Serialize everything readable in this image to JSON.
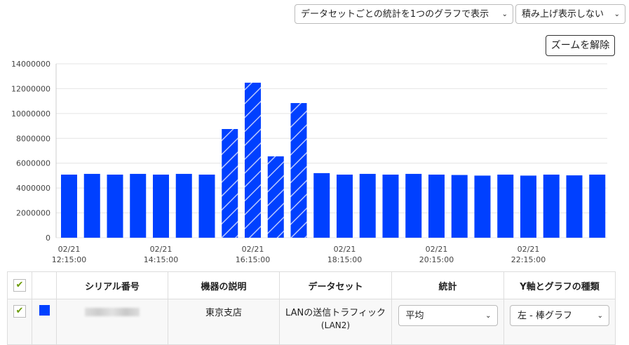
{
  "controls": {
    "display_mode": "データセットごとの統計を1つのグラフで表示",
    "stack_mode": "積み上げ表示しない",
    "zoom_reset": "ズームを解除"
  },
  "chart_data": {
    "type": "bar",
    "ylim": [
      0,
      14000000
    ],
    "y_ticks": [
      "0",
      "2000000",
      "4000000",
      "6000000",
      "8000000",
      "10000000",
      "12000000",
      "14000000"
    ],
    "x_tick_labels": [
      [
        "02/21",
        "12:15:00"
      ],
      [
        "02/21",
        "14:15:00"
      ],
      [
        "02/21",
        "16:15:00"
      ],
      [
        "02/21",
        "18:15:00"
      ],
      [
        "02/21",
        "20:15:00"
      ],
      [
        "02/21",
        "22:15:00"
      ]
    ],
    "values": [
      5080000,
      5140000,
      5080000,
      5140000,
      5080000,
      5140000,
      5080000,
      8750000,
      12480000,
      6550000,
      10840000,
      5200000,
      5080000,
      5140000,
      5080000,
      5140000,
      5080000,
      5050000,
      5000000,
      5080000,
      5000000,
      5080000,
      5020000,
      5080000
    ],
    "hatched_indices": [
      7,
      8,
      9,
      10
    ],
    "color": "#0040ff",
    "grid": true
  },
  "table": {
    "headers": [
      "シリアル番号",
      "機器の説明",
      "データセット",
      "統計",
      "Y軸とグラフの種類"
    ],
    "row": {
      "description": "東京支店",
      "dataset": "LANの送信トラフィック",
      "dataset_sub": "(LAN2)",
      "stat": "平均",
      "axis": "左 - 棒グラフ",
      "color": "#0040ff"
    }
  }
}
